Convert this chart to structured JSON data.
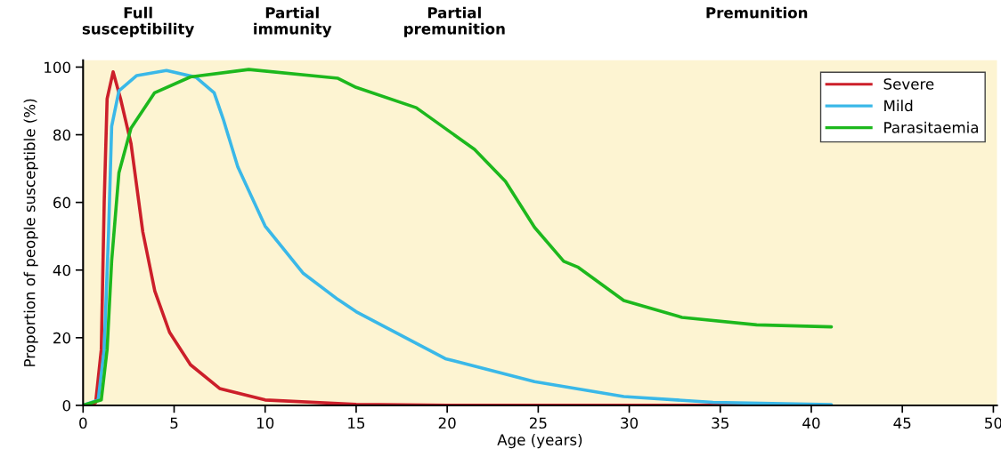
{
  "chart_data": {
    "type": "line",
    "xlabel": "Age (years)",
    "ylabel": "Proportion of people susceptible (%)",
    "annotations": [
      "Full\nsusceptibility",
      "Partial\nimmunity",
      "Partial\npremunition",
      "Premunition"
    ],
    "xlim": [
      0,
      50.2
    ],
    "xticks": [
      0,
      5,
      10,
      15,
      20,
      25,
      30,
      35,
      40,
      45,
      50
    ],
    "ylim": [
      0,
      102
    ],
    "yticks": [
      0,
      20,
      40,
      60,
      80,
      100
    ],
    "grid": false,
    "legend": "top right",
    "marker": "none",
    "line_style": "solid",
    "series": [
      {
        "name": "Severe",
        "color": "#cc1f2a",
        "x": [
          0,
          0.69,
          1.0,
          1.16,
          1.32,
          1.65,
          2.06,
          2.63,
          3.28,
          3.94,
          4.75,
          5.9,
          7.5,
          10,
          15,
          20,
          41.1
        ],
        "values": [
          0,
          0.8,
          16.5,
          60,
          90.6,
          98.6,
          90.6,
          77.5,
          51.3,
          33.8,
          21.6,
          12,
          5,
          1.6,
          0.3,
          0,
          0
        ]
      },
      {
        "name": "Mild",
        "color": "#3ab8e8",
        "x": [
          0,
          0.83,
          1.16,
          1.4,
          1.57,
          1.97,
          2.95,
          4.58,
          6.2,
          7.2,
          7.7,
          8.5,
          10,
          12.1,
          14.0,
          15.0,
          19.9,
          24.8,
          29.7,
          34.6,
          41.1
        ],
        "values": [
          0,
          1.6,
          16.5,
          51,
          82.5,
          93,
          97.5,
          99,
          97,
          92.4,
          84.6,
          70.5,
          53,
          39,
          31.3,
          27.7,
          13.8,
          7,
          2.6,
          0.9,
          0.2
        ]
      },
      {
        "name": "Parasitaemia",
        "color": "#1db81d",
        "x": [
          0,
          1.0,
          1.32,
          1.57,
          1.97,
          2.63,
          3.93,
          5.9,
          9.1,
          14.0,
          15.0,
          18.3,
          21.5,
          23.2,
          24.8,
          26.4,
          27.2,
          29.7,
          32.9,
          37.0,
          41.1
        ],
        "values": [
          0,
          1.6,
          16.5,
          42.7,
          68.8,
          81.9,
          92.4,
          97.1,
          99.3,
          96.7,
          94,
          88,
          75.7,
          66.2,
          52.6,
          42.6,
          40.8,
          31,
          26,
          23.8,
          23.2
        ]
      }
    ]
  }
}
